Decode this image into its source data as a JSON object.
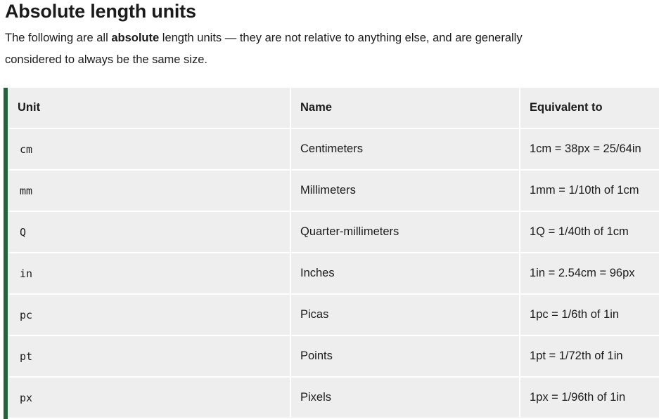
{
  "heading": "Absolute length units",
  "intro": {
    "before": "The following are all ",
    "bold": "absolute",
    "after": " length units — they are not relative to anything else, and are generally considered to always be the same size."
  },
  "table": {
    "headers": [
      "Unit",
      "Name",
      "Equivalent to"
    ],
    "rows": [
      {
        "unit": "cm",
        "name": "Centimeters",
        "equivalent": "1cm = 38px = 25/64in"
      },
      {
        "unit": "mm",
        "name": "Millimeters",
        "equivalent": "1mm = 1/10th of 1cm"
      },
      {
        "unit": "Q",
        "name": "Quarter-millimeters",
        "equivalent": "1Q = 1/40th of 1cm"
      },
      {
        "unit": "in",
        "name": "Inches",
        "equivalent": "1in = 2.54cm = 96px"
      },
      {
        "unit": "pc",
        "name": "Picas",
        "equivalent": "1pc = 1/6th of 1in"
      },
      {
        "unit": "pt",
        "name": "Points",
        "equivalent": "1pt = 1/72th of 1in"
      },
      {
        "unit": "px",
        "name": "Pixels",
        "equivalent": "1px = 1/96th of 1in"
      }
    ]
  },
  "colors": {
    "accent_border": "#24643a",
    "cell_background": "#eeeeee"
  }
}
